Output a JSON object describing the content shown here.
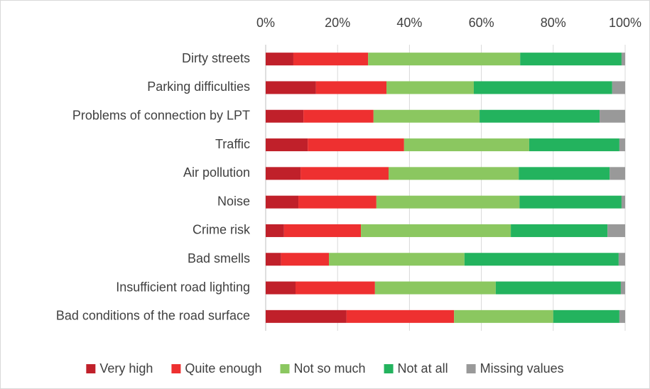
{
  "chart_data": {
    "type": "stacked_barh",
    "categories": [
      "Dirty streets",
      "Parking difficulties",
      "Problems of connection by LPT",
      "Traffic",
      "Air pollution",
      "Noise",
      "Crime risk",
      "Bad smells",
      "Insufficient road lighting",
      "Bad conditions of the road surface"
    ],
    "series": [
      {
        "name": "Very high",
        "color": "#c0202a",
        "values": [
          7.7,
          14.0,
          10.5,
          11.7,
          9.7,
          9.1,
          5.1,
          4.3,
          8.3,
          22.5
        ]
      },
      {
        "name": "Quite enough",
        "color": "#ee3030",
        "values": [
          20.8,
          19.6,
          19.5,
          26.8,
          24.5,
          21.7,
          21.4,
          13.3,
          22.1,
          29.9
        ]
      },
      {
        "name": "Not so much",
        "color": "#8bc760",
        "values": [
          42.3,
          24.3,
          29.5,
          34.8,
          36.2,
          39.8,
          41.7,
          37.7,
          33.6,
          27.6
        ]
      },
      {
        "name": "Not at all",
        "color": "#23b35e",
        "values": [
          28.2,
          38.5,
          33.4,
          25.1,
          25.3,
          28.4,
          26.9,
          42.9,
          34.8,
          18.4
        ]
      },
      {
        "name": "Missing values",
        "color": "#999999",
        "values": [
          1.0,
          3.6,
          7.1,
          1.6,
          4.3,
          1.0,
          4.9,
          1.8,
          1.2,
          1.6
        ]
      }
    ],
    "xlim": [
      0,
      100
    ],
    "xticks": [
      {
        "value": 0,
        "label": "0%"
      },
      {
        "value": 20,
        "label": "20%"
      },
      {
        "value": 40,
        "label": "40%"
      },
      {
        "value": 60,
        "label": "60%"
      },
      {
        "value": 80,
        "label": "80%"
      },
      {
        "value": 100,
        "label": "100%"
      }
    ],
    "grid": true,
    "legend": "bottom"
  }
}
